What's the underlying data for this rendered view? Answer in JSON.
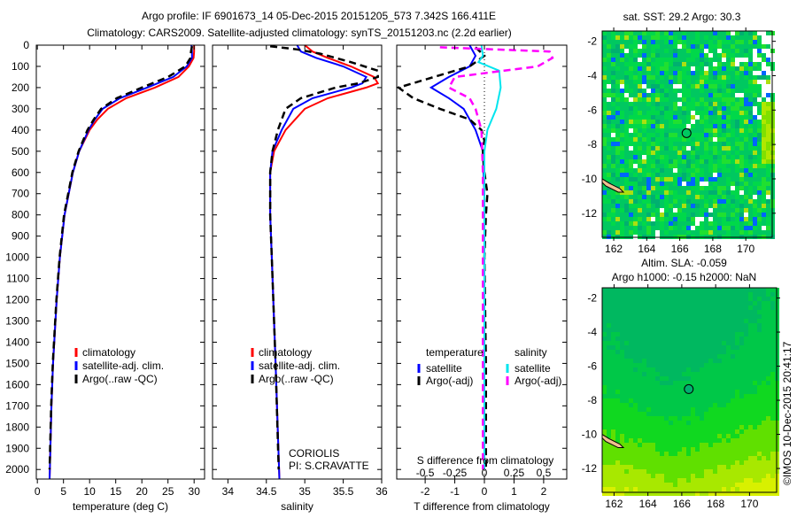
{
  "title_line1": "Argo profile: IF 6901673_14 05-Dec-2015 20151205_573 7.342S 166.411E",
  "title_line2": "Climatology: CARS2009. Satellite-adjusted climatology: synTS_20151203.nc (2.2d earlier)",
  "colors": {
    "climatology": "#ff0000",
    "satellite": "#0000ff",
    "argo": "#000000",
    "sal_satellite": "#00e5ee",
    "sal_argo": "#ff00ff"
  },
  "chart_data": [
    {
      "type": "line",
      "id": "temperature",
      "xlabel": "temperature (deg C)",
      "ylabel": "",
      "xlim": [
        -0.2,
        32
      ],
      "ylim": [
        2045,
        0
      ],
      "xticks": [
        0,
        5,
        10,
        15,
        20,
        25,
        30
      ],
      "yticks": [
        0,
        100,
        200,
        300,
        400,
        500,
        600,
        700,
        800,
        900,
        1000,
        1100,
        1200,
        1300,
        1400,
        1500,
        1600,
        1700,
        1800,
        1900,
        2000
      ],
      "legend": [
        "climatology",
        "satellite-adj. clim.",
        "Argo(..raw -QC)"
      ],
      "series": [
        {
          "name": "climatology",
          "color": "#ff0000",
          "depth": [
            0,
            30,
            60,
            100,
            150,
            200,
            250,
            300,
            350,
            400,
            500,
            600,
            800,
            1000,
            1200,
            1500,
            1700,
            2000,
            2045
          ],
          "values": [
            30,
            30,
            29.9,
            29,
            27,
            22.5,
            17,
            13.5,
            11.5,
            10,
            8,
            6.8,
            5.2,
            4.3,
            3.7,
            3,
            2.7,
            2.4,
            2.35
          ]
        },
        {
          "name": "satellite-adj. clim.",
          "color": "#0000ff",
          "depth": [
            0,
            30,
            60,
            100,
            150,
            200,
            250,
            300,
            350,
            400,
            500,
            600,
            800,
            1000,
            1200,
            1500,
            1700,
            2000,
            2045
          ],
          "values": [
            29.5,
            29.6,
            29.6,
            28.6,
            26,
            21,
            15.8,
            12.5,
            11,
            9.8,
            8,
            6.8,
            5.2,
            4.3,
            3.7,
            3,
            2.7,
            2.4,
            2.35
          ]
        },
        {
          "name": "Argo(..raw -QC)",
          "color": "#000000",
          "depth": [
            5,
            30,
            60,
            100,
            150,
            200,
            250,
            300,
            350,
            400,
            500,
            600,
            800,
            1000,
            1200,
            1500,
            1700,
            2000
          ],
          "values": [
            29.6,
            29.4,
            29.3,
            28.3,
            25,
            20,
            15.2,
            12.2,
            10.8,
            9.6,
            7.9,
            6.7,
            5.1,
            4.25,
            3.65,
            2.95,
            2.65,
            2.35
          ]
        }
      ]
    },
    {
      "type": "line",
      "id": "salinity",
      "xlabel": "salinity",
      "ylabel": "",
      "xlim": [
        33.8,
        36.0
      ],
      "ylim": [
        2045,
        0
      ],
      "xticks": [
        34,
        34.5,
        35,
        35.5,
        36
      ],
      "legend": [
        "climatology",
        "satellite-adj. clim.",
        "Argo(..raw -QC)"
      ],
      "annotation": [
        "CORIOLIS",
        "PI: S.CRAVATTE"
      ],
      "series": [
        {
          "name": "climatology",
          "color": "#ff0000",
          "depth": [
            0,
            30,
            60,
            100,
            150,
            180,
            200,
            250,
            300,
            400,
            500,
            600,
            800,
            1000,
            1500,
            2045
          ],
          "values": [
            35.0,
            35.1,
            35.3,
            35.6,
            35.9,
            35.95,
            35.8,
            35.3,
            35.0,
            34.75,
            34.6,
            34.55,
            34.55,
            34.57,
            34.62,
            34.67
          ]
        },
        {
          "name": "satellite-adj. clim.",
          "color": "#0000ff",
          "depth": [
            0,
            30,
            60,
            100,
            150,
            180,
            200,
            250,
            300,
            400,
            500,
            600,
            800,
            1000,
            1500,
            2045
          ],
          "values": [
            34.9,
            34.95,
            35.15,
            35.5,
            35.8,
            35.75,
            35.6,
            35.1,
            34.85,
            34.7,
            34.58,
            34.55,
            34.55,
            34.57,
            34.62,
            34.67
          ]
        },
        {
          "name": "Argo(..raw -QC)",
          "color": "#000000",
          "depth": [
            5,
            20,
            40,
            80,
            120,
            150,
            180,
            200,
            250,
            300,
            400,
            500,
            600,
            800,
            1000,
            1500,
            2000
          ],
          "values": [
            34.55,
            34.9,
            35.2,
            35.6,
            35.95,
            35.95,
            35.7,
            35.4,
            34.95,
            34.75,
            34.65,
            34.58,
            34.55,
            34.55,
            34.57,
            34.62,
            34.66
          ]
        }
      ]
    },
    {
      "type": "line",
      "id": "difference",
      "xlabel": "T difference from climatology",
      "xlabel2": "S difference from climatology",
      "xlim": [
        -2.96,
        2.78
      ],
      "ylim": [
        2045,
        0
      ],
      "xticks": [
        -2,
        -1,
        0,
        1,
        2
      ],
      "xticks2": [
        "-0.5",
        "-0.25",
        "0",
        "0.25",
        "0.5"
      ],
      "legend_headers": [
        "temperature",
        "salinity"
      ],
      "legend": [
        "satellite",
        "Argo(-adj)",
        "satellite",
        "Argo(-adj)"
      ],
      "series": [
        {
          "name": "temperature satellite",
          "color": "#0000ff",
          "depth": [
            0,
            50,
            100,
            150,
            200,
            250,
            300,
            400,
            500,
            700,
            1000,
            1500,
            2000
          ],
          "values": [
            -0.5,
            -0.3,
            -0.5,
            -1.2,
            -1.8,
            -1.2,
            -0.7,
            -0.3,
            -0.05,
            0,
            0,
            0,
            0
          ]
        },
        {
          "name": "temperature Argo(-adj)",
          "color": "#000000",
          "depth": [
            10,
            50,
            100,
            150,
            200,
            250,
            300,
            350,
            400,
            450,
            500,
            600,
            700,
            800,
            1000,
            1500,
            2000
          ],
          "values": [
            -0.3,
            0,
            -0.5,
            -1.7,
            -2.9,
            -2.4,
            -1.5,
            -0.5,
            -0.1,
            0,
            -0.05,
            0,
            0.1,
            0.05,
            0,
            0.05,
            0.05
          ]
        },
        {
          "name": "salinity satellite",
          "color": "#00e5ee",
          "depth": [
            0,
            50,
            80,
            120,
            200,
            300,
            400,
            500,
            700,
            1000,
            1500,
            2000
          ],
          "values": [
            -0.1,
            -0.05,
            -0.2,
            0.5,
            0.55,
            0.4,
            0.1,
            0.0,
            0,
            0,
            0,
            0
          ]
        },
        {
          "name": "salinity Argo(-adj)",
          "color": "#ff00ff",
          "depth": [
            10,
            30,
            60,
            100,
            150,
            200,
            250,
            300,
            400,
            600,
            1000,
            1500,
            2000
          ],
          "values": [
            -1.5,
            2.2,
            2.3,
            1.8,
            -1.0,
            -1.2,
            -0.5,
            -0.3,
            -0.1,
            -0.05,
            -0.05,
            -0.05,
            -0.05
          ]
        }
      ]
    },
    {
      "type": "heatmap",
      "id": "sst_map",
      "title": "sat. SST: 29.2 Argo: 30.3",
      "xlim": [
        161.3,
        171.6
      ],
      "ylim": [
        -13.4,
        -1.4
      ],
      "xticks": [
        162,
        164,
        166,
        168,
        170
      ],
      "yticks": [
        -2,
        -4,
        -6,
        -8,
        -10,
        -12
      ],
      "argo_position": {
        "lon": 166.411,
        "lat": -7.342
      }
    },
    {
      "type": "heatmap",
      "id": "sla_map",
      "title": "Altim. SLA: -0.059",
      "subtitle": "Argo h1000: -0.15 h2000: NaN",
      "xlim": [
        161.3,
        171.6
      ],
      "ylim": [
        -13.4,
        -1.4
      ],
      "xticks": [
        162,
        164,
        166,
        168,
        170
      ],
      "yticks": [
        -2,
        -4,
        -6,
        -8,
        -10,
        -12
      ],
      "argo_position": {
        "lon": 166.411,
        "lat": -7.342
      }
    }
  ],
  "credit": "©IMOS 10-Dec-2015 20:41:17"
}
